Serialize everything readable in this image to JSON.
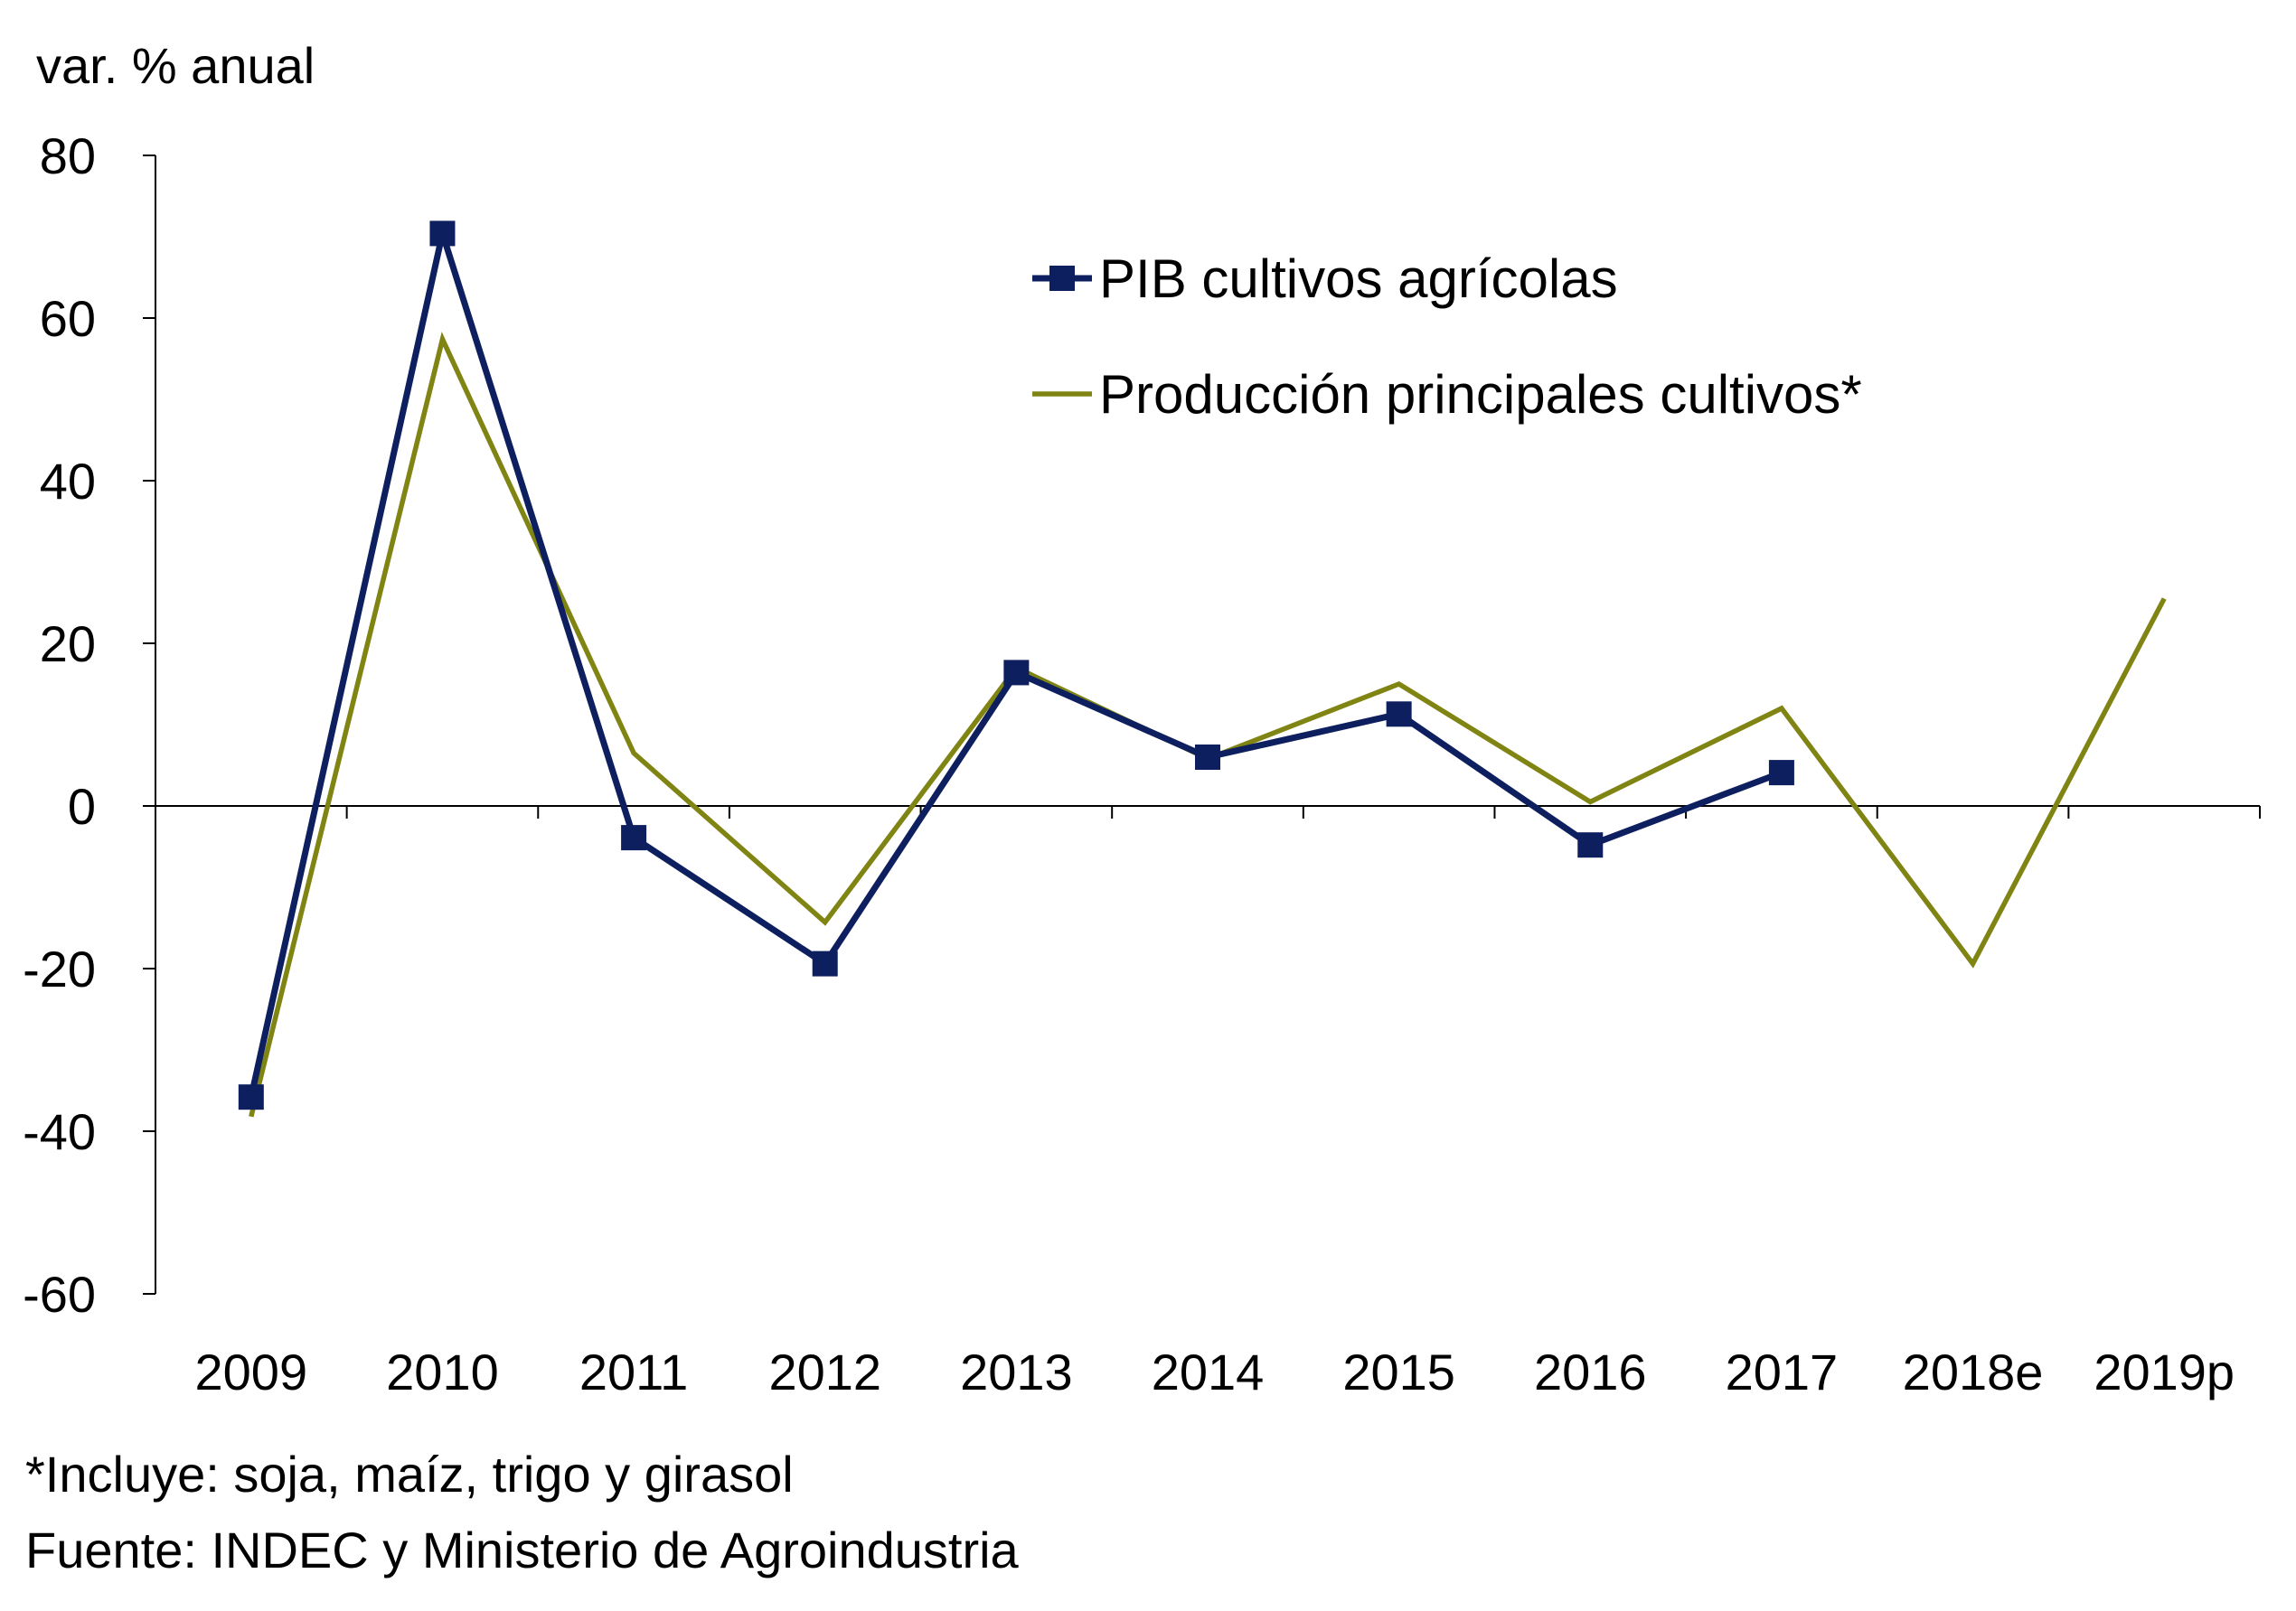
{
  "chart_data": {
    "type": "line",
    "ylabel": "var. % anual",
    "categories": [
      "2009",
      "2010",
      "2011",
      "2012",
      "2013",
      "2014",
      "2015",
      "2016",
      "2017",
      "2018e",
      "2019p"
    ],
    "ylim": [
      -60,
      80
    ],
    "yticks": [
      -60,
      -40,
      -20,
      0,
      20,
      40,
      60,
      80
    ],
    "ytick_labels": [
      "-60",
      "-40",
      "-20",
      "0",
      "20",
      "40",
      "60",
      "80"
    ],
    "legend_position": "top-right",
    "series": [
      {
        "name": "PIB cultivos agrícolas",
        "color": "#0d1f5e",
        "marker": "square",
        "values": [
          -35.8,
          70.4,
          -3.9,
          -19.4,
          16.4,
          6.0,
          11.3,
          -4.8,
          4.1,
          null,
          null
        ]
      },
      {
        "name": "Producción principales cultivos*",
        "color": "#7f8413",
        "marker": "none",
        "values": [
          -38.2,
          57.4,
          6.5,
          -14.3,
          17.0,
          5.8,
          15.0,
          0.5,
          12.0,
          -19.4,
          25.5
        ]
      }
    ]
  },
  "notes": {
    "footnote": "*Incluye:  soja, maíz, trigo y girasol",
    "source": "Fuente:  INDEC y Ministerio de Agroindustria"
  }
}
